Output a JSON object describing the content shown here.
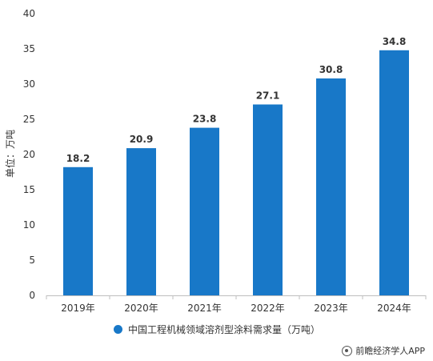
{
  "chart_data": {
    "type": "bar",
    "title": "",
    "xlabel": "",
    "ylabel": "单位：万吨",
    "categories": [
      "2019年",
      "2020年",
      "2021年",
      "2022年",
      "2023年",
      "2024年"
    ],
    "series": [
      {
        "name": "中国工程机械领域溶剂型涂料需求量（万吨）",
        "values": [
          18.2,
          20.9,
          23.8,
          27.1,
          30.8,
          34.8
        ]
      }
    ],
    "data_labels": [
      "18.2",
      "20.9",
      "23.8",
      "27.1",
      "30.8",
      "34.8"
    ],
    "yticks": [
      0,
      5,
      10,
      15,
      20,
      25,
      30,
      35,
      40
    ],
    "ylim": [
      0,
      40
    ],
    "grid": false,
    "legend_position": "bottom",
    "colors": {
      "bar": "#1878c8",
      "axis": "#bfbfbf",
      "label": "#333333"
    }
  },
  "legend": {
    "label": "中国工程机械领域溶剂型涂料需求量（万吨）",
    "color": "#1878c8"
  },
  "source": {
    "text": "前瞻经济学人APP",
    "logo_icon": "qianzhan-logo-icon"
  }
}
